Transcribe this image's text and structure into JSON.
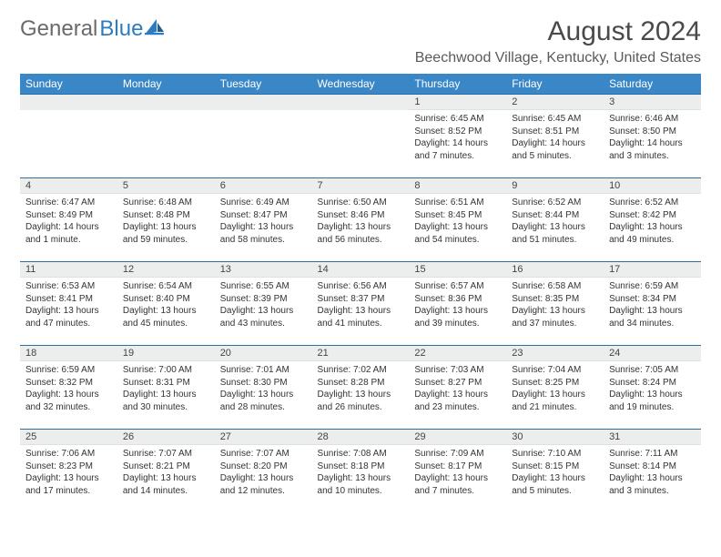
{
  "logo": {
    "word1": "General",
    "word2": "Blue"
  },
  "title": "August 2024",
  "location": "Beechwood Village, Kentucky, United States",
  "header_bg": "#3a87c8",
  "weekdays": [
    "Sunday",
    "Monday",
    "Tuesday",
    "Wednesday",
    "Thursday",
    "Friday",
    "Saturday"
  ],
  "weeks": [
    [
      null,
      null,
      null,
      null,
      {
        "n": "1",
        "sr": "Sunrise: 6:45 AM",
        "ss": "Sunset: 8:52 PM",
        "dl": "Daylight: 14 hours and 7 minutes."
      },
      {
        "n": "2",
        "sr": "Sunrise: 6:45 AM",
        "ss": "Sunset: 8:51 PM",
        "dl": "Daylight: 14 hours and 5 minutes."
      },
      {
        "n": "3",
        "sr": "Sunrise: 6:46 AM",
        "ss": "Sunset: 8:50 PM",
        "dl": "Daylight: 14 hours and 3 minutes."
      }
    ],
    [
      {
        "n": "4",
        "sr": "Sunrise: 6:47 AM",
        "ss": "Sunset: 8:49 PM",
        "dl": "Daylight: 14 hours and 1 minute."
      },
      {
        "n": "5",
        "sr": "Sunrise: 6:48 AM",
        "ss": "Sunset: 8:48 PM",
        "dl": "Daylight: 13 hours and 59 minutes."
      },
      {
        "n": "6",
        "sr": "Sunrise: 6:49 AM",
        "ss": "Sunset: 8:47 PM",
        "dl": "Daylight: 13 hours and 58 minutes."
      },
      {
        "n": "7",
        "sr": "Sunrise: 6:50 AM",
        "ss": "Sunset: 8:46 PM",
        "dl": "Daylight: 13 hours and 56 minutes."
      },
      {
        "n": "8",
        "sr": "Sunrise: 6:51 AM",
        "ss": "Sunset: 8:45 PM",
        "dl": "Daylight: 13 hours and 54 minutes."
      },
      {
        "n": "9",
        "sr": "Sunrise: 6:52 AM",
        "ss": "Sunset: 8:44 PM",
        "dl": "Daylight: 13 hours and 51 minutes."
      },
      {
        "n": "10",
        "sr": "Sunrise: 6:52 AM",
        "ss": "Sunset: 8:42 PM",
        "dl": "Daylight: 13 hours and 49 minutes."
      }
    ],
    [
      {
        "n": "11",
        "sr": "Sunrise: 6:53 AM",
        "ss": "Sunset: 8:41 PM",
        "dl": "Daylight: 13 hours and 47 minutes."
      },
      {
        "n": "12",
        "sr": "Sunrise: 6:54 AM",
        "ss": "Sunset: 8:40 PM",
        "dl": "Daylight: 13 hours and 45 minutes."
      },
      {
        "n": "13",
        "sr": "Sunrise: 6:55 AM",
        "ss": "Sunset: 8:39 PM",
        "dl": "Daylight: 13 hours and 43 minutes."
      },
      {
        "n": "14",
        "sr": "Sunrise: 6:56 AM",
        "ss": "Sunset: 8:37 PM",
        "dl": "Daylight: 13 hours and 41 minutes."
      },
      {
        "n": "15",
        "sr": "Sunrise: 6:57 AM",
        "ss": "Sunset: 8:36 PM",
        "dl": "Daylight: 13 hours and 39 minutes."
      },
      {
        "n": "16",
        "sr": "Sunrise: 6:58 AM",
        "ss": "Sunset: 8:35 PM",
        "dl": "Daylight: 13 hours and 37 minutes."
      },
      {
        "n": "17",
        "sr": "Sunrise: 6:59 AM",
        "ss": "Sunset: 8:34 PM",
        "dl": "Daylight: 13 hours and 34 minutes."
      }
    ],
    [
      {
        "n": "18",
        "sr": "Sunrise: 6:59 AM",
        "ss": "Sunset: 8:32 PM",
        "dl": "Daylight: 13 hours and 32 minutes."
      },
      {
        "n": "19",
        "sr": "Sunrise: 7:00 AM",
        "ss": "Sunset: 8:31 PM",
        "dl": "Daylight: 13 hours and 30 minutes."
      },
      {
        "n": "20",
        "sr": "Sunrise: 7:01 AM",
        "ss": "Sunset: 8:30 PM",
        "dl": "Daylight: 13 hours and 28 minutes."
      },
      {
        "n": "21",
        "sr": "Sunrise: 7:02 AM",
        "ss": "Sunset: 8:28 PM",
        "dl": "Daylight: 13 hours and 26 minutes."
      },
      {
        "n": "22",
        "sr": "Sunrise: 7:03 AM",
        "ss": "Sunset: 8:27 PM",
        "dl": "Daylight: 13 hours and 23 minutes."
      },
      {
        "n": "23",
        "sr": "Sunrise: 7:04 AM",
        "ss": "Sunset: 8:25 PM",
        "dl": "Daylight: 13 hours and 21 minutes."
      },
      {
        "n": "24",
        "sr": "Sunrise: 7:05 AM",
        "ss": "Sunset: 8:24 PM",
        "dl": "Daylight: 13 hours and 19 minutes."
      }
    ],
    [
      {
        "n": "25",
        "sr": "Sunrise: 7:06 AM",
        "ss": "Sunset: 8:23 PM",
        "dl": "Daylight: 13 hours and 17 minutes."
      },
      {
        "n": "26",
        "sr": "Sunrise: 7:07 AM",
        "ss": "Sunset: 8:21 PM",
        "dl": "Daylight: 13 hours and 14 minutes."
      },
      {
        "n": "27",
        "sr": "Sunrise: 7:07 AM",
        "ss": "Sunset: 8:20 PM",
        "dl": "Daylight: 13 hours and 12 minutes."
      },
      {
        "n": "28",
        "sr": "Sunrise: 7:08 AM",
        "ss": "Sunset: 8:18 PM",
        "dl": "Daylight: 13 hours and 10 minutes."
      },
      {
        "n": "29",
        "sr": "Sunrise: 7:09 AM",
        "ss": "Sunset: 8:17 PM",
        "dl": "Daylight: 13 hours and 7 minutes."
      },
      {
        "n": "30",
        "sr": "Sunrise: 7:10 AM",
        "ss": "Sunset: 8:15 PM",
        "dl": "Daylight: 13 hours and 5 minutes."
      },
      {
        "n": "31",
        "sr": "Sunrise: 7:11 AM",
        "ss": "Sunset: 8:14 PM",
        "dl": "Daylight: 13 hours and 3 minutes."
      }
    ]
  ]
}
